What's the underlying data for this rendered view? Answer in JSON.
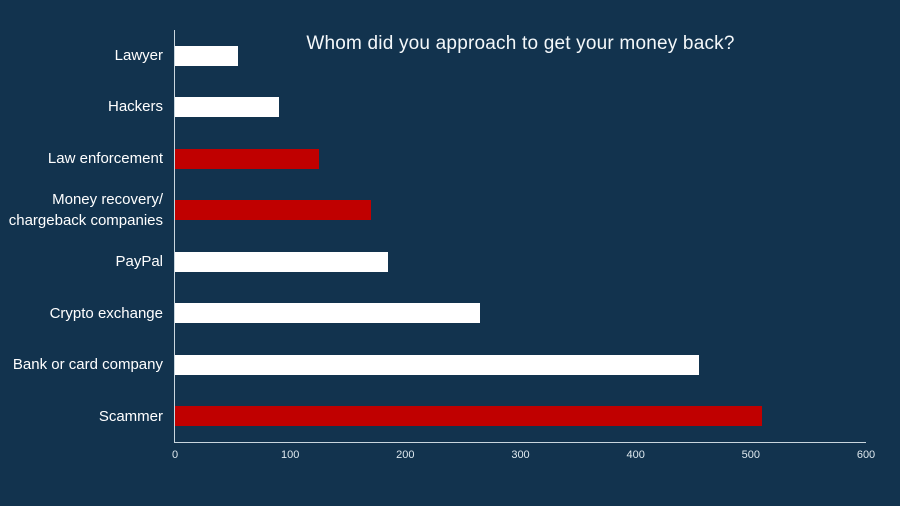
{
  "title": "Whom did you approach to get your money back?",
  "colors": {
    "background": "#12334E",
    "bar_red": "#C00000",
    "bar_white": "#FFFFFF",
    "axis_line": "#C9D6DE",
    "title_text": "#F4F8FA",
    "label_text": "#FFFFFF",
    "tick_text": "#DEE8EE"
  },
  "chart_data": {
    "type": "bar",
    "orientation": "horizontal",
    "title": "Whom did you approach to get your money back?",
    "categories": [
      "Lawyer",
      "Hackers",
      "Law enforcement",
      "Money recovery/ chargeback companies",
      "PayPal",
      "Crypto exchange",
      "Bank or card company",
      "Scammer"
    ],
    "values": [
      55,
      90,
      125,
      170,
      185,
      265,
      455,
      510
    ],
    "bar_colors": [
      "white",
      "white",
      "red",
      "red",
      "white",
      "white",
      "white",
      "red"
    ],
    "xlabel": "",
    "ylabel": "",
    "xlim": [
      0,
      600
    ],
    "xticks": [
      0,
      100,
      200,
      300,
      400,
      500,
      600
    ],
    "grid": false,
    "legend": false
  }
}
